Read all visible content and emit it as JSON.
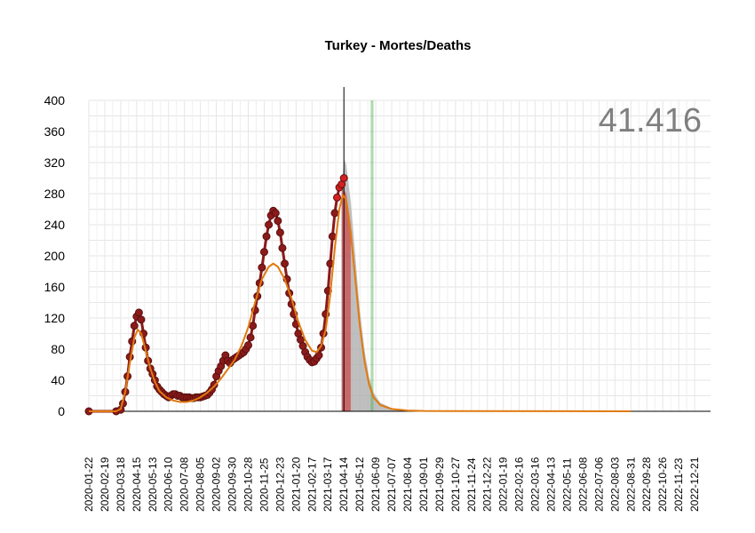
{
  "chart_data": {
    "type": "line",
    "title": "Turkey - Mortes/Deaths",
    "annotation": "41.416",
    "xlabel": "",
    "ylabel": "",
    "ylim": [
      0,
      400
    ],
    "x_range": [
      "2020-01-22",
      "2023-01-18"
    ],
    "grid": true,
    "yticks": [
      0,
      40,
      80,
      120,
      160,
      200,
      240,
      280,
      320,
      360,
      400
    ],
    "xticks": [
      "2020-01-22",
      "2020-02-19",
      "2020-03-18",
      "2020-04-15",
      "2020-05-13",
      "2020-06-10",
      "2020-07-08",
      "2020-08-05",
      "2020-09-02",
      "2020-09-30",
      "2020-10-28",
      "2020-11-25",
      "2020-12-23",
      "2021-01-20",
      "2021-02-17",
      "2021-03-17",
      "2021-04-14",
      "2021-05-12",
      "2021-06-09",
      "2021-07-07",
      "2021-08-04",
      "2021-09-01",
      "2021-09-29",
      "2021-10-27",
      "2021-11-24",
      "2021-12-22",
      "2022-01-19",
      "2022-02-16",
      "2022-03-16",
      "2022-04-13",
      "2022-05-11",
      "2022-06-08",
      "2022-07-06",
      "2022-08-03",
      "2022-08-31",
      "2022-09-28",
      "2022-10-26",
      "2022-11-23",
      "2022-12-21"
    ],
    "vertical_line_date": "2021-04-14",
    "green_band": [
      "2021-05-31",
      "2021-06-05"
    ],
    "colors": {
      "observed": "#8b1a1a",
      "observed_highlight": "#d42020",
      "smoothed": "#e07a10",
      "forecast_band": "#aaaaaa",
      "forecast_red": "#d42020",
      "green_band": "#4caf50"
    },
    "series": [
      {
        "role": "observed",
        "points": [
          [
            "2020-01-22",
            0
          ],
          [
            "2020-03-10",
            0
          ],
          [
            "2020-03-18",
            2
          ],
          [
            "2020-03-22",
            10
          ],
          [
            "2020-03-26",
            25
          ],
          [
            "2020-03-30",
            45
          ],
          [
            "2020-04-03",
            70
          ],
          [
            "2020-04-07",
            90
          ],
          [
            "2020-04-11",
            110
          ],
          [
            "2020-04-15",
            122
          ],
          [
            "2020-04-19",
            127
          ],
          [
            "2020-04-23",
            118
          ],
          [
            "2020-04-27",
            100
          ],
          [
            "2020-05-01",
            82
          ],
          [
            "2020-05-05",
            65
          ],
          [
            "2020-05-09",
            55
          ],
          [
            "2020-05-13",
            48
          ],
          [
            "2020-05-17",
            40
          ],
          [
            "2020-05-21",
            32
          ],
          [
            "2020-05-25",
            28
          ],
          [
            "2020-05-29",
            25
          ],
          [
            "2020-06-02",
            22
          ],
          [
            "2020-06-06",
            20
          ],
          [
            "2020-06-10",
            18
          ],
          [
            "2020-06-14",
            20
          ],
          [
            "2020-06-18",
            22
          ],
          [
            "2020-06-22",
            22
          ],
          [
            "2020-06-26",
            20
          ],
          [
            "2020-06-30",
            20
          ],
          [
            "2020-07-04",
            18
          ],
          [
            "2020-07-08",
            18
          ],
          [
            "2020-07-12",
            18
          ],
          [
            "2020-07-16",
            18
          ],
          [
            "2020-07-20",
            17
          ],
          [
            "2020-07-24",
            17
          ],
          [
            "2020-07-28",
            18
          ],
          [
            "2020-08-01",
            18
          ],
          [
            "2020-08-05",
            18
          ],
          [
            "2020-08-09",
            19
          ],
          [
            "2020-08-13",
            20
          ],
          [
            "2020-08-17",
            21
          ],
          [
            "2020-08-21",
            24
          ],
          [
            "2020-08-25",
            28
          ],
          [
            "2020-08-29",
            34
          ],
          [
            "2020-09-02",
            45
          ],
          [
            "2020-09-06",
            52
          ],
          [
            "2020-09-10",
            58
          ],
          [
            "2020-09-14",
            65
          ],
          [
            "2020-09-18",
            72
          ],
          [
            "2020-09-22",
            65
          ],
          [
            "2020-09-26",
            62
          ],
          [
            "2020-09-30",
            66
          ],
          [
            "2020-10-04",
            68
          ],
          [
            "2020-10-08",
            70
          ],
          [
            "2020-10-12",
            72
          ],
          [
            "2020-10-16",
            74
          ],
          [
            "2020-10-20",
            76
          ],
          [
            "2020-10-24",
            80
          ],
          [
            "2020-10-28",
            85
          ],
          [
            "2020-11-01",
            95
          ],
          [
            "2020-11-05",
            110
          ],
          [
            "2020-11-09",
            130
          ],
          [
            "2020-11-13",
            148
          ],
          [
            "2020-11-17",
            165
          ],
          [
            "2020-11-21",
            185
          ],
          [
            "2020-11-25",
            205
          ],
          [
            "2020-11-29",
            225
          ],
          [
            "2020-12-03",
            240
          ],
          [
            "2020-12-07",
            252
          ],
          [
            "2020-12-11",
            258
          ],
          [
            "2020-12-15",
            255
          ],
          [
            "2020-12-19",
            245
          ],
          [
            "2020-12-23",
            230
          ],
          [
            "2020-12-27",
            210
          ],
          [
            "2020-12-31",
            190
          ],
          [
            "2021-01-04",
            170
          ],
          [
            "2021-01-08",
            152
          ],
          [
            "2021-01-12",
            138
          ],
          [
            "2021-01-16",
            125
          ],
          [
            "2021-01-20",
            112
          ],
          [
            "2021-01-24",
            100
          ],
          [
            "2021-01-28",
            92
          ],
          [
            "2021-02-01",
            84
          ],
          [
            "2021-02-05",
            76
          ],
          [
            "2021-02-09",
            70
          ],
          [
            "2021-02-13",
            66
          ],
          [
            "2021-02-17",
            63
          ],
          [
            "2021-02-21",
            64
          ],
          [
            "2021-02-25",
            68
          ],
          [
            "2021-03-01",
            72
          ],
          [
            "2021-03-05",
            82
          ],
          [
            "2021-03-09",
            100
          ],
          [
            "2021-03-13",
            125
          ],
          [
            "2021-03-17",
            155
          ],
          [
            "2021-03-21",
            190
          ],
          [
            "2021-03-25",
            225
          ],
          [
            "2021-03-29",
            255
          ],
          [
            "2021-04-02",
            275
          ],
          [
            "2021-04-06",
            288
          ],
          [
            "2021-04-10",
            292
          ],
          [
            "2021-04-14",
            300
          ]
        ]
      },
      {
        "role": "smoothed",
        "points": [
          [
            "2020-01-22",
            0
          ],
          [
            "2020-03-10",
            0
          ],
          [
            "2020-03-18",
            3
          ],
          [
            "2020-03-26",
            25
          ],
          [
            "2020-04-03",
            62
          ],
          [
            "2020-04-11",
            95
          ],
          [
            "2020-04-17",
            105
          ],
          [
            "2020-04-23",
            100
          ],
          [
            "2020-05-01",
            78
          ],
          [
            "2020-05-09",
            55
          ],
          [
            "2020-05-17",
            38
          ],
          [
            "2020-05-25",
            26
          ],
          [
            "2020-06-06",
            18
          ],
          [
            "2020-06-18",
            14
          ],
          [
            "2020-06-30",
            12
          ],
          [
            "2020-07-12",
            12
          ],
          [
            "2020-07-24",
            14
          ],
          [
            "2020-08-05",
            18
          ],
          [
            "2020-08-17",
            24
          ],
          [
            "2020-08-29",
            32
          ],
          [
            "2020-09-10",
            42
          ],
          [
            "2020-09-22",
            54
          ],
          [
            "2020-10-04",
            66
          ],
          [
            "2020-10-16",
            84
          ],
          [
            "2020-10-28",
            108
          ],
          [
            "2020-11-09",
            140
          ],
          [
            "2020-11-21",
            170
          ],
          [
            "2020-12-03",
            186
          ],
          [
            "2020-12-11",
            190
          ],
          [
            "2020-12-19",
            186
          ],
          [
            "2020-12-31",
            170
          ],
          [
            "2021-01-12",
            145
          ],
          [
            "2021-01-24",
            115
          ],
          [
            "2021-02-05",
            92
          ],
          [
            "2021-02-17",
            78
          ],
          [
            "2021-02-25",
            76
          ],
          [
            "2021-03-05",
            84
          ],
          [
            "2021-03-13",
            105
          ],
          [
            "2021-03-21",
            150
          ],
          [
            "2021-03-29",
            210
          ],
          [
            "2021-04-06",
            260
          ],
          [
            "2021-04-12",
            278
          ],
          [
            "2021-04-18",
            272
          ],
          [
            "2021-04-26",
            230
          ],
          [
            "2021-05-04",
            170
          ],
          [
            "2021-05-12",
            110
          ],
          [
            "2021-05-20",
            65
          ],
          [
            "2021-05-28",
            35
          ],
          [
            "2021-06-05",
            18
          ],
          [
            "2021-06-17",
            8
          ],
          [
            "2021-07-07",
            3
          ],
          [
            "2021-08-04",
            1
          ],
          [
            "2021-09-01",
            0.4
          ],
          [
            "2022-08-31",
            0
          ]
        ]
      },
      {
        "role": "forecast_upper",
        "points": [
          [
            "2021-04-10",
            280
          ],
          [
            "2021-04-14",
            325
          ],
          [
            "2021-04-18",
            318
          ],
          [
            "2021-04-26",
            270
          ],
          [
            "2021-05-04",
            200
          ],
          [
            "2021-05-12",
            130
          ],
          [
            "2021-05-20",
            80
          ],
          [
            "2021-05-28",
            45
          ],
          [
            "2021-06-05",
            24
          ],
          [
            "2021-06-17",
            11
          ],
          [
            "2021-07-07",
            4
          ],
          [
            "2021-08-04",
            1.5
          ],
          [
            "2021-09-01",
            0.5
          ]
        ]
      },
      {
        "role": "forecast_red",
        "points": [
          [
            "2021-04-10",
            285
          ],
          [
            "2021-04-14",
            285
          ],
          [
            "2021-04-18",
            280
          ],
          [
            "2021-04-26",
            240
          ]
        ]
      }
    ]
  }
}
